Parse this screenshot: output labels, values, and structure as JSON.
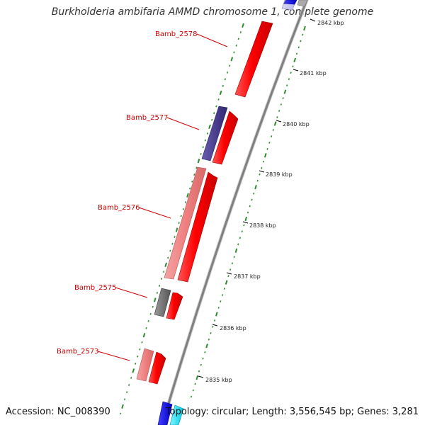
{
  "title": "Burkholderia ambifaria AMMD chromosome 1, complete genome",
  "footer": {
    "accession": "Accession: NC_008390",
    "summary": "Topology: circular; Length: 3,556,545 bp; Genes: 3,281"
  },
  "ticks": [
    "2842 kbp",
    "2841 kbp",
    "2840 kbp",
    "2839 kbp",
    "2838 kbp",
    "2837 kbp",
    "2836 kbp",
    "2835 kbp"
  ],
  "gene_labels": [
    "Bamb_2578",
    "Bamb_2577",
    "Bamb_2576",
    "Bamb_2575",
    "Bamb_2573"
  ],
  "colors": {
    "backbone": "#808080",
    "label": "#cc0000",
    "dots": "#2e8b2e",
    "forward_cds": "#ff0000",
    "reverse_cds_pink": "#f08080",
    "reverse_cds_purple": "#4b3d8c",
    "reverse_cds_gray": "#707070",
    "reverse_cds_blue": "#0000ff",
    "reverse_cds_cyan": "#00e5ff"
  }
}
